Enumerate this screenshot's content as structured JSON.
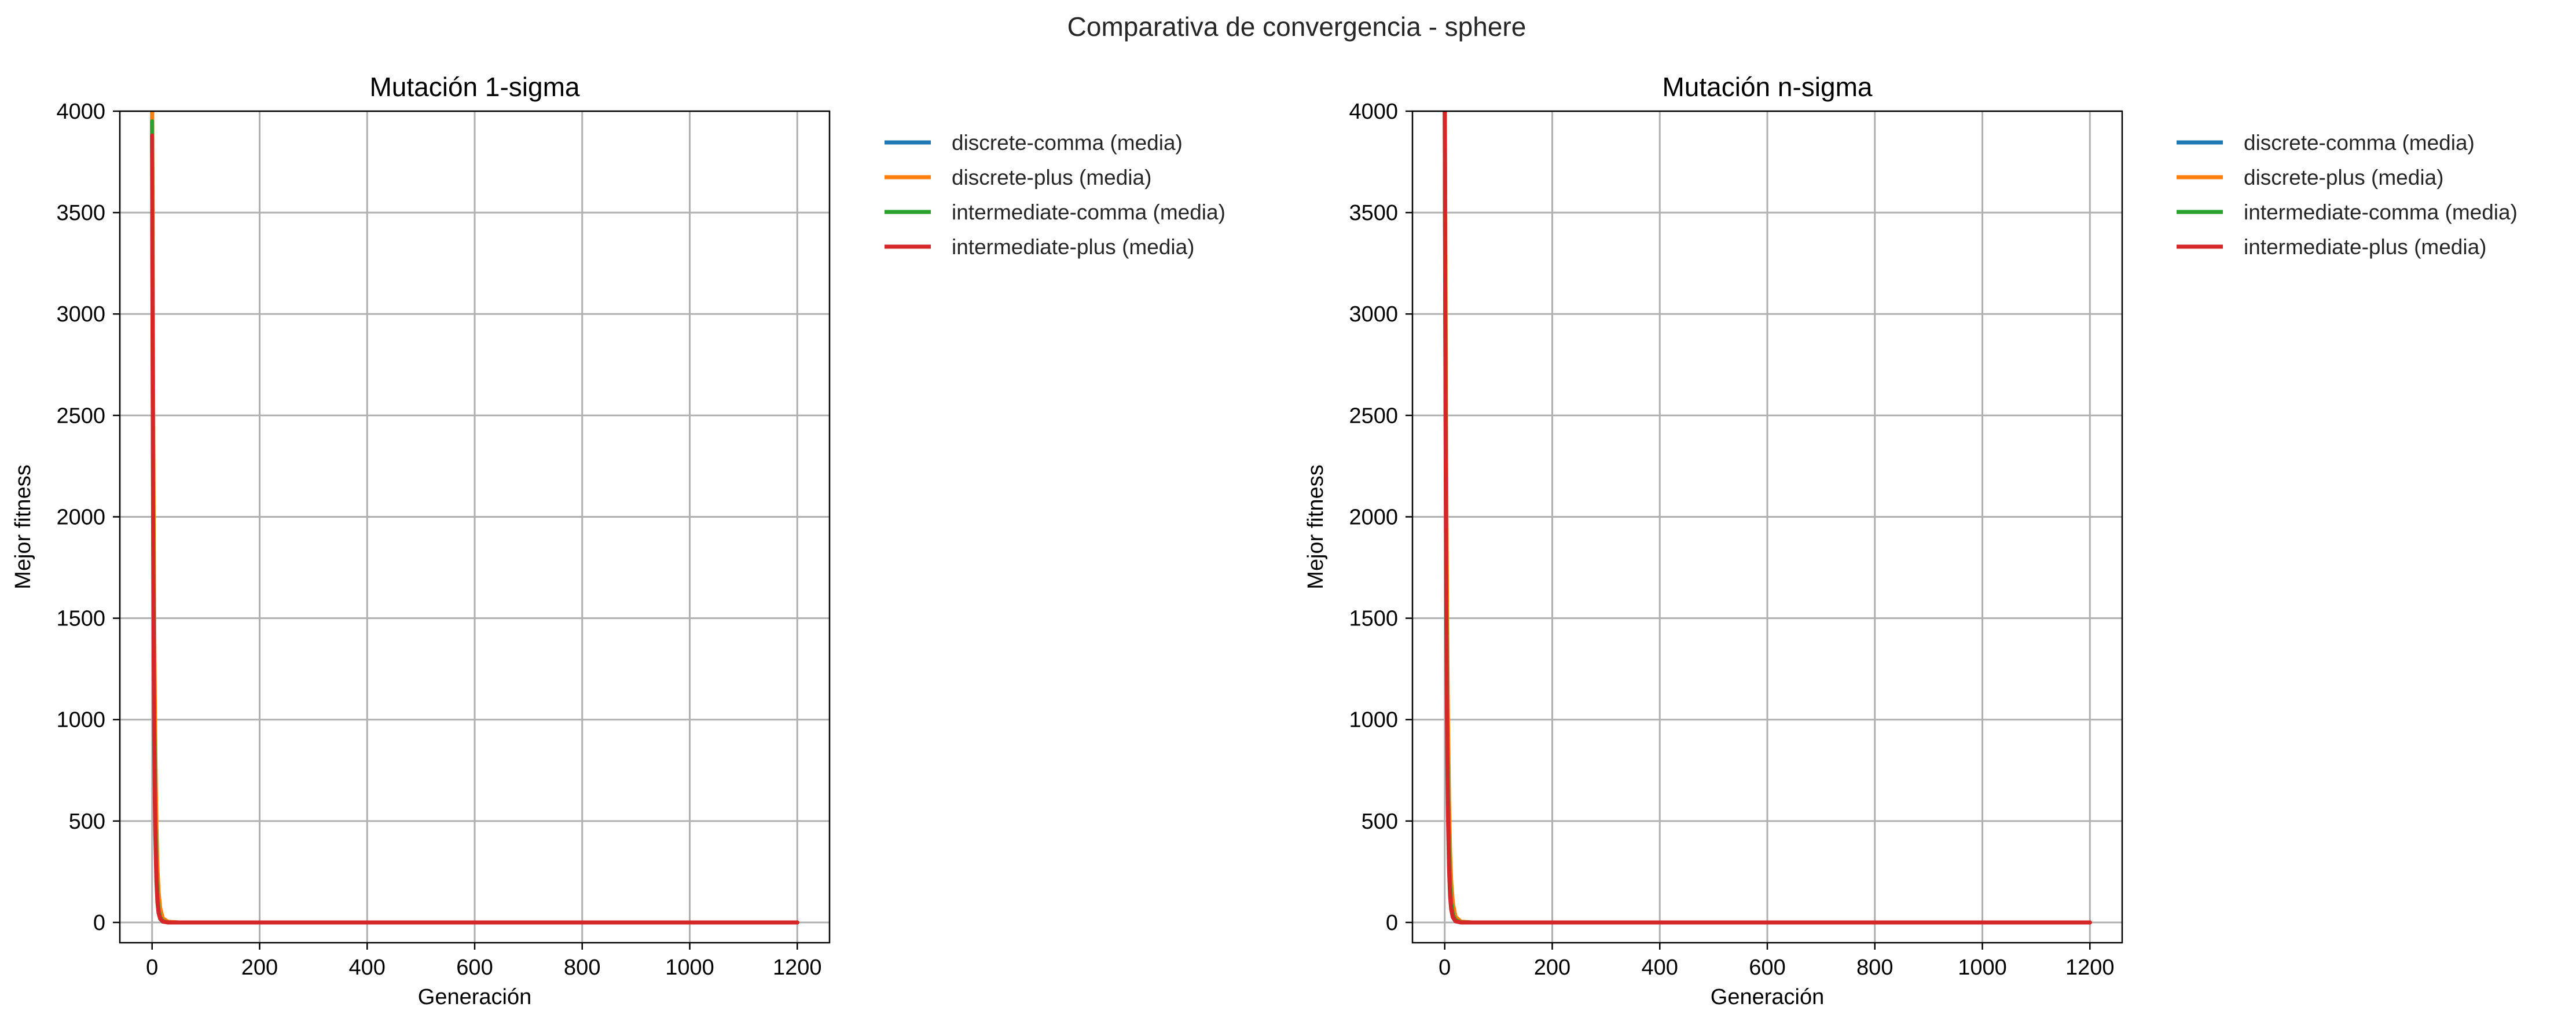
{
  "figure": {
    "suptitle": "Comparativa de convergencia - sphere"
  },
  "chart_data": [
    {
      "type": "line",
      "title": "Mutación 1-sigma",
      "xlabel": "Generación",
      "ylabel": "Mejor fitness",
      "xlim": [
        -60,
        1260
      ],
      "ylim": [
        -100,
        4000
      ],
      "xticks": [
        "0",
        "200",
        "400",
        "600",
        "800",
        "1000",
        "1200"
      ],
      "yticks": [
        "0",
        "500",
        "1000",
        "1500",
        "2000",
        "2500",
        "3000",
        "3500",
        "4000"
      ],
      "grid": true,
      "legend_position": "outside-right-top",
      "x": [
        0,
        1,
        2,
        3,
        4,
        5,
        6,
        8,
        10,
        12,
        15,
        20,
        30,
        50,
        100,
        200,
        400,
        600,
        800,
        1000,
        1200
      ],
      "series": [
        {
          "name": "discrete-comma (media)",
          "color": "#1f77b4",
          "values": [
            4100,
            3000,
            2200,
            1600,
            1150,
            830,
            600,
            320,
            170,
            90,
            40,
            10,
            1,
            0,
            0,
            0,
            0,
            0,
            0,
            0,
            0
          ]
        },
        {
          "name": "discrete-plus (media)",
          "color": "#ff7f0e",
          "values": [
            4150,
            3300,
            2550,
            1950,
            1480,
            1120,
            850,
            480,
            270,
            150,
            70,
            20,
            3,
            0,
            0,
            0,
            0,
            0,
            0,
            0,
            0
          ]
        },
        {
          "name": "intermediate-comma (media)",
          "color": "#2ca02c",
          "values": [
            3950,
            2850,
            2050,
            1450,
            1020,
            720,
            500,
            250,
            125,
            62,
            25,
            6,
            0,
            0,
            0,
            0,
            0,
            0,
            0,
            0,
            0
          ]
        },
        {
          "name": "intermediate-plus (media)",
          "color": "#d62728",
          "values": [
            3880,
            2700,
            1880,
            1300,
            900,
            620,
            430,
            205,
            98,
            47,
            18,
            4,
            0,
            0,
            0,
            0,
            0,
            0,
            0,
            0,
            0
          ]
        }
      ]
    },
    {
      "type": "line",
      "title": "Mutación n-sigma",
      "xlabel": "Generación",
      "ylabel": "Mejor fitness",
      "xlim": [
        -60,
        1260
      ],
      "ylim": [
        -100,
        4000
      ],
      "xticks": [
        "0",
        "200",
        "400",
        "600",
        "800",
        "1000",
        "1200"
      ],
      "yticks": [
        "0",
        "500",
        "1000",
        "1500",
        "2000",
        "2500",
        "3000",
        "3500",
        "4000"
      ],
      "grid": true,
      "legend_position": "outside-right-top",
      "x": [
        0,
        1,
        2,
        3,
        4,
        5,
        6,
        8,
        10,
        12,
        15,
        20,
        30,
        50,
        100,
        200,
        400,
        600,
        800,
        1000,
        1200
      ],
      "series": [
        {
          "name": "discrete-comma (media)",
          "color": "#1f77b4",
          "values": [
            4200,
            3150,
            2350,
            1750,
            1300,
            960,
            710,
            390,
            215,
            118,
            52,
            14,
            2,
            0,
            0,
            0,
            0,
            0,
            0,
            0,
            0
          ]
        },
        {
          "name": "discrete-plus (media)",
          "color": "#ff7f0e",
          "values": [
            4250,
            3450,
            2750,
            2150,
            1680,
            1300,
            1000,
            590,
            345,
            200,
            95,
            28,
            4,
            0,
            0,
            0,
            0,
            0,
            0,
            0,
            0
          ]
        },
        {
          "name": "intermediate-comma (media)",
          "color": "#2ca02c",
          "values": [
            4150,
            3050,
            2250,
            1650,
            1200,
            880,
            640,
            340,
            180,
            95,
            40,
            10,
            1,
            0,
            0,
            0,
            0,
            0,
            0,
            0,
            0
          ]
        },
        {
          "name": "intermediate-plus (media)",
          "color": "#d62728",
          "values": [
            4100,
            2950,
            2100,
            1500,
            1060,
            750,
            530,
            265,
            130,
            65,
            26,
            6,
            0,
            0,
            0,
            0,
            0,
            0,
            0,
            0,
            0
          ]
        }
      ]
    }
  ]
}
